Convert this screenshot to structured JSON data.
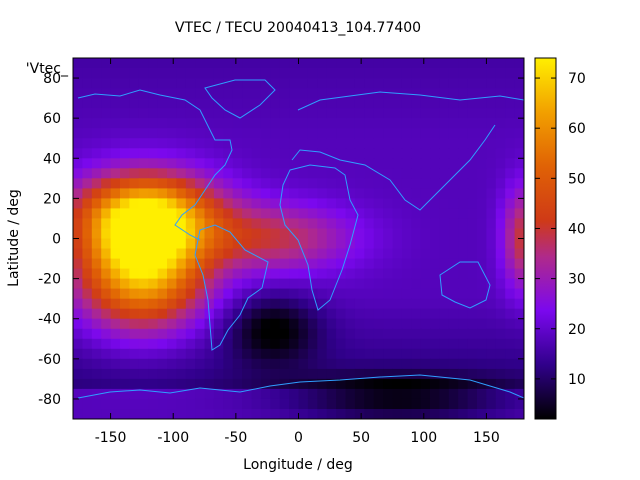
{
  "chart_data": {
    "type": "heatmap",
    "title": "VTEC / TECU 20040413_104.77400",
    "xlabel": "Longitude / deg",
    "ylabel": "Latitude / deg",
    "key_label": "'Vtec_",
    "xlim": [
      -180,
      180
    ],
    "ylim": [
      -90,
      90
    ],
    "x_ticks": [
      -150,
      -100,
      -50,
      0,
      50,
      100,
      150
    ],
    "y_ticks": [
      -80,
      -60,
      -40,
      -20,
      0,
      20,
      40,
      60,
      80
    ],
    "colorbar": {
      "min": 2,
      "max": 74,
      "ticks": [
        10,
        20,
        30,
        40,
        50,
        60,
        70
      ]
    },
    "features": [
      {
        "kind": "peak",
        "lon": -125,
        "lat": -12,
        "vtec": 72,
        "sx": 35,
        "sy": 22
      },
      {
        "kind": "anomaly-north",
        "lon": -120,
        "lat": 12,
        "vtec": 56,
        "sx": 40,
        "sy": 14
      },
      {
        "kind": "band",
        "lon": -20,
        "lat": 0,
        "vtec": 38,
        "sx": 45,
        "sy": 12
      },
      {
        "kind": "edge",
        "lon": 180,
        "lat": 0,
        "vtec": 40,
        "sx": 12,
        "sy": 18
      },
      {
        "kind": "trough",
        "lon": -20,
        "lat": -45,
        "vtec": 3,
        "sx": 25,
        "sy": 12
      },
      {
        "kind": "south-polar",
        "lon": 80,
        "lat": -80,
        "vtec": 3,
        "sx": 60,
        "sy": 8
      },
      {
        "kind": "background",
        "vtec": 18
      }
    ]
  }
}
